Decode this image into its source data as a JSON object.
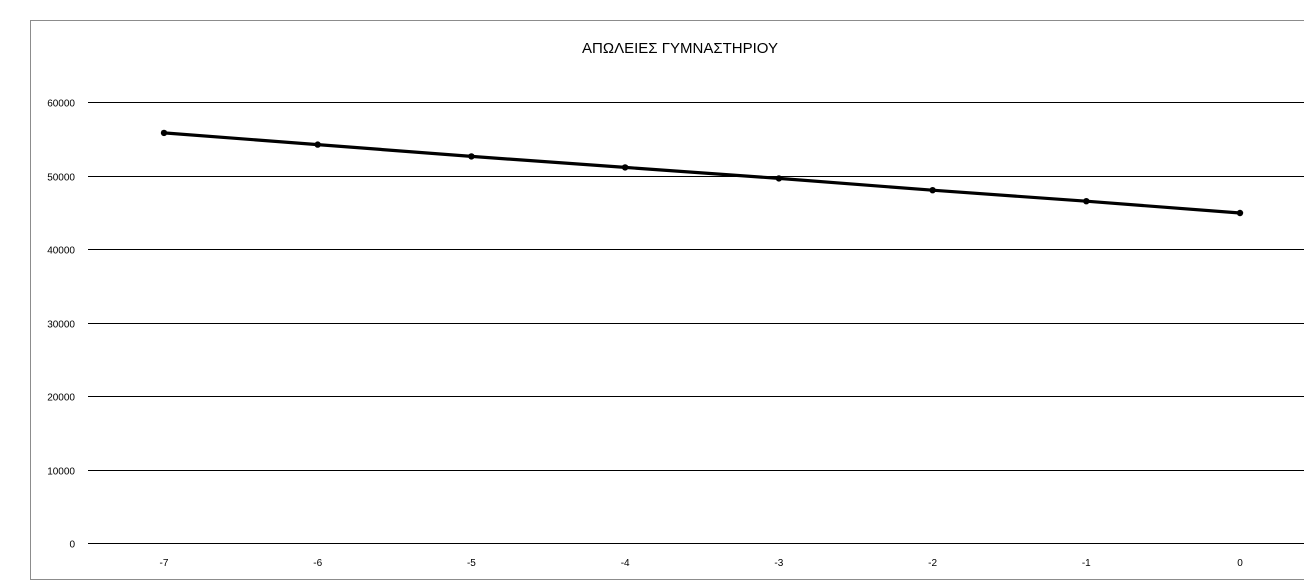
{
  "chart_data": {
    "type": "line",
    "title": "ΑΠΩΛΕΙΕΣ ΓΥΜΝΑΣΤΗΡΙΟΥ",
    "xlabel": "",
    "ylabel": "",
    "x": [
      -7,
      -6,
      -5,
      -4,
      -3,
      -2,
      -1,
      0
    ],
    "x_tick_labels": [
      "-7",
      "-6",
      "-5",
      "-4",
      "-3",
      "-2",
      "-1",
      "0"
    ],
    "y_tick_labels": [
      "0",
      "10000",
      "20000",
      "30000",
      "40000",
      "50000",
      "60000"
    ],
    "y_ticks": [
      0,
      10000,
      20000,
      30000,
      40000,
      50000,
      60000
    ],
    "ylim": [
      0,
      60000
    ],
    "grid": true,
    "legend": "none",
    "series": [
      {
        "values": [
          55800,
          54200,
          52600,
          51100,
          49600,
          48000,
          46500,
          44900
        ]
      }
    ],
    "colors": {
      "line": "#000000",
      "grid": "#000000",
      "frame": "#8c8c8c"
    }
  }
}
